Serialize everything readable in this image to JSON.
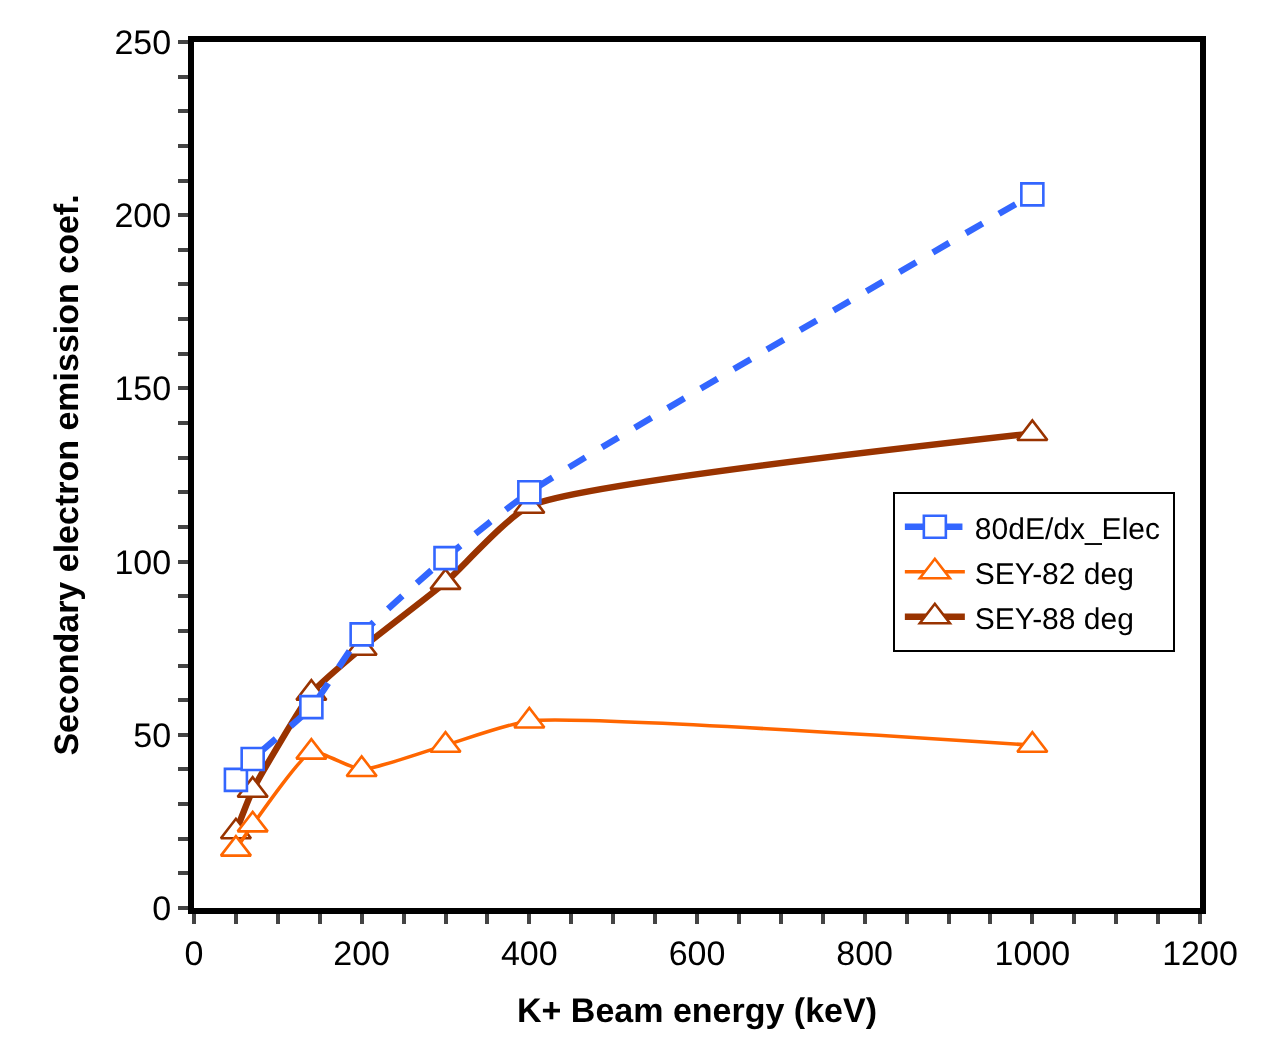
{
  "chart_data": {
    "type": "line",
    "xlabel": "K+ Beam energy (keV)",
    "ylabel": "Secondary electron emission coef.",
    "x": [
      50,
      70,
      140,
      200,
      300,
      400,
      1000
    ],
    "series": [
      {
        "name": "80dE/dx_Elec",
        "color": "#3366ff",
        "values": [
          37,
          43,
          58,
          79,
          101,
          120,
          206
        ],
        "marker": "square",
        "line_style": "dashed"
      },
      {
        "name": "SEY-82 deg",
        "color": "#ff6600",
        "values": [
          17,
          24,
          45,
          40,
          47,
          54,
          47
        ],
        "marker": "triangle",
        "line_style": "solid"
      },
      {
        "name": "SEY-88 deg",
        "color": "#993300",
        "values": [
          22,
          34,
          62,
          75,
          94,
          116,
          137
        ],
        "marker": "triangle",
        "line_style": "solid"
      }
    ],
    "xlim": [
      0,
      1200
    ],
    "xticks": [
      0,
      {
        "value": 50,
        "label": null
      },
      {
        "value": 100,
        "label": null
      },
      {
        "value": 150,
        "label": null
      },
      200,
      {
        "value": 250,
        "label": null
      },
      {
        "value": 300,
        "label": null
      },
      {
        "value": 350,
        "label": null
      },
      400,
      {
        "value": 450,
        "label": null
      },
      {
        "value": 500,
        "label": null
      },
      {
        "value": 550,
        "label": null
      },
      600,
      {
        "value": 650,
        "label": null
      },
      {
        "value": 700,
        "label": null
      },
      {
        "value": 750,
        "label": null
      },
      800,
      {
        "value": 850,
        "label": null
      },
      {
        "value": 900,
        "label": null
      },
      {
        "value": 950,
        "label": null
      },
      1000,
      {
        "value": 1050,
        "label": null
      },
      {
        "value": 1100,
        "label": null
      },
      {
        "value": 1150,
        "label": null
      },
      1200
    ],
    "ylim": [
      0,
      250
    ],
    "yticks": [
      0,
      {
        "value": 10,
        "label": null
      },
      {
        "value": 20,
        "label": null
      },
      {
        "value": 30,
        "label": null
      },
      {
        "value": 40,
        "label": null
      },
      50,
      {
        "value": 60,
        "label": null
      },
      {
        "value": 70,
        "label": null
      },
      {
        "value": 80,
        "label": null
      },
      {
        "value": 90,
        "label": null
      },
      100,
      {
        "value": 110,
        "label": null
      },
      {
        "value": 120,
        "label": null
      },
      {
        "value": 130,
        "label": null
      },
      {
        "value": 140,
        "label": null
      },
      150,
      {
        "value": 160,
        "label": null
      },
      {
        "value": 170,
        "label": null
      },
      {
        "value": 180,
        "label": null
      },
      {
        "value": 190,
        "label": null
      },
      200,
      {
        "value": 210,
        "label": null
      },
      {
        "value": 220,
        "label": null
      },
      {
        "value": 230,
        "label": null
      },
      {
        "value": 240,
        "label": null
      },
      250
    ],
    "grid": false,
    "legend": "right"
  }
}
